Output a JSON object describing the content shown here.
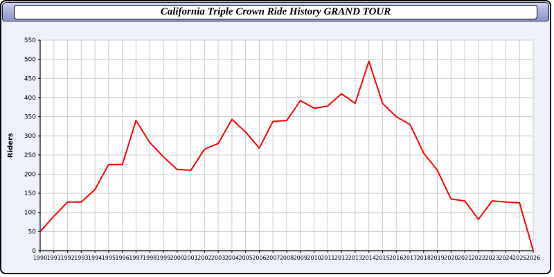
{
  "header": {
    "title": "California Triple Crown Ride History GRAND TOUR"
  },
  "chart_data": {
    "type": "line",
    "title": "California Triple Crown Ride History GRAND TOUR",
    "xlabel": "",
    "ylabel": "Riders",
    "ylim": [
      0,
      550
    ],
    "ytick_step": 50,
    "grid": true,
    "legend": "none",
    "line_color": "#ff0000",
    "grid_color": "#cccccc",
    "axis_color": "#000000",
    "plot_bg": "#ffffff",
    "categories": [
      "1990",
      "1991",
      "1992",
      "1993",
      "1994",
      "1995",
      "1996",
      "1997",
      "1998",
      "1999",
      "2000",
      "2001",
      "2002",
      "2003",
      "2004",
      "2005",
      "2006",
      "2007",
      "2008",
      "2009",
      "2010",
      "2011",
      "2012",
      "2013",
      "2014",
      "2015",
      "2016",
      "2017",
      "2018",
      "2019",
      "2020",
      "2021",
      "2022",
      "2023",
      "2024",
      "2025",
      "2026"
    ],
    "values": [
      50,
      90,
      127,
      127,
      160,
      225,
      225,
      340,
      283,
      245,
      212,
      210,
      265,
      280,
      343,
      310,
      268,
      338,
      340,
      392,
      372,
      378,
      410,
      385,
      495,
      385,
      350,
      330,
      255,
      210,
      135,
      130,
      82,
      130,
      127,
      125,
      0
    ]
  }
}
